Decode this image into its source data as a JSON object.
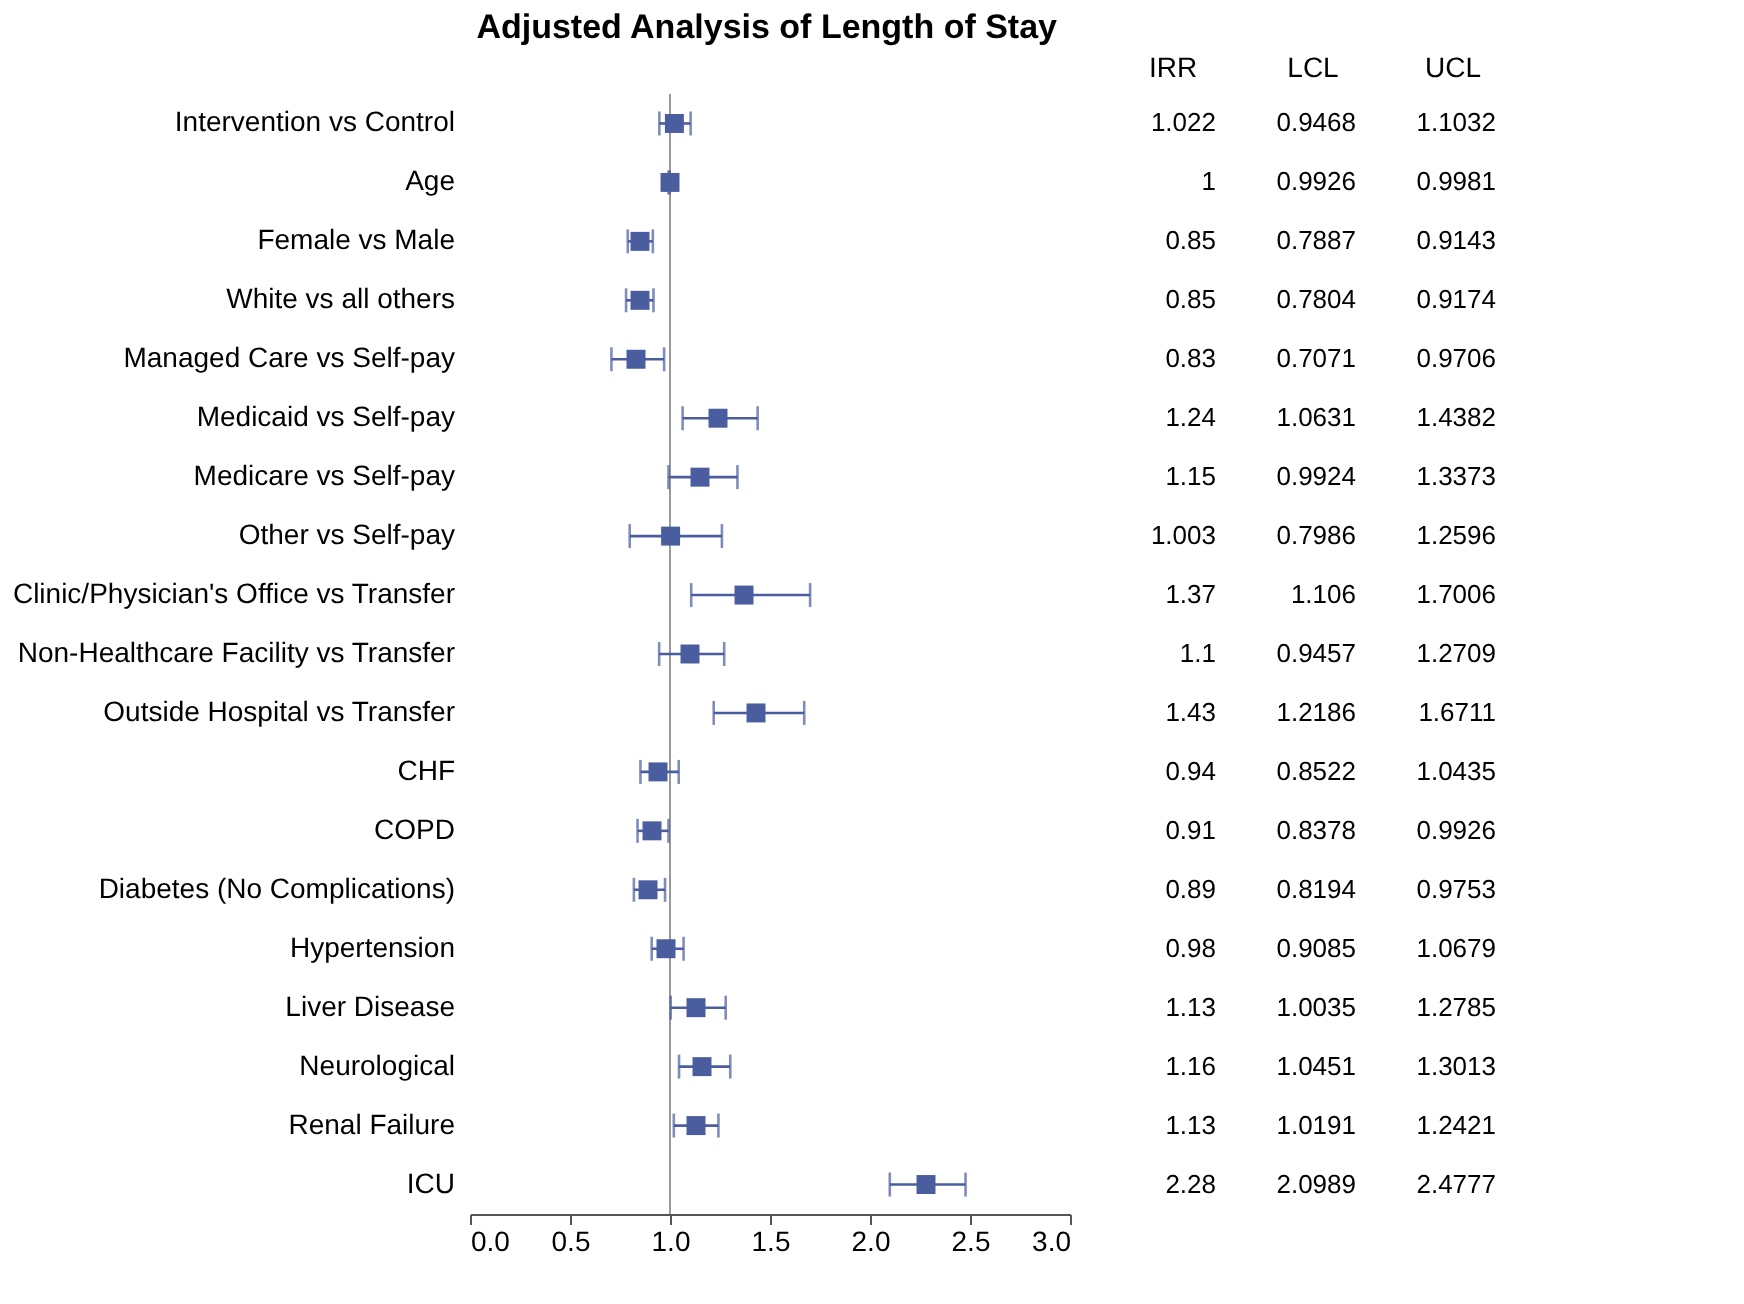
{
  "chart_data": {
    "type": "scatter",
    "orientation": "horizontal",
    "title": "Adjusted Analysis of Length of Stay",
    "categories": [
      "Intervention vs Control",
      "Age",
      "Female vs Male",
      "White vs all others",
      "Managed Care vs Self-pay",
      "Medicaid vs Self-pay",
      "Medicare vs Self-pay",
      "Other vs Self-pay",
      "Clinic/Physician's Office vs Transfer",
      "Non-Healthcare Facility vs Transfer",
      "Outside Hospital vs Transfer",
      "CHF",
      "COPD",
      "Diabetes (No Complications)",
      "Hypertension",
      "Liver Disease",
      "Neurological",
      "Renal Failure",
      "ICU"
    ],
    "values": [
      1.022,
      1,
      0.85,
      0.85,
      0.83,
      1.24,
      1.15,
      1.003,
      1.37,
      1.1,
      1.43,
      0.94,
      0.91,
      0.89,
      0.98,
      1.13,
      1.16,
      1.13,
      2.28
    ],
    "errors": [
      [
        0.9468,
        1.1032
      ],
      [
        0.9926,
        0.9981
      ],
      [
        0.7887,
        0.9143
      ],
      [
        0.7804,
        0.9174
      ],
      [
        0.7071,
        0.9706
      ],
      [
        1.0631,
        1.4382
      ],
      [
        0.9924,
        1.3373
      ],
      [
        0.7986,
        1.2596
      ],
      [
        1.106,
        1.7006
      ],
      [
        0.9457,
        1.2709
      ],
      [
        1.2186,
        1.6711
      ],
      [
        0.8522,
        1.0435
      ],
      [
        0.8378,
        0.9926
      ],
      [
        0.8194,
        0.9753
      ],
      [
        0.9085,
        1.0679
      ],
      [
        1.0035,
        1.2785
      ],
      [
        1.0451,
        1.3013
      ],
      [
        1.0191,
        1.2421
      ],
      [
        2.0989,
        2.4777
      ]
    ],
    "color": "#4a5d9e",
    "marker": "square",
    "data_labels": true,
    "annotations": [
      "IRR",
      "LCL",
      "UCL",
      "0.9468",
      "1.1032",
      "0.9926",
      "0.9981",
      "0.7887",
      "0.9143",
      "0.7804",
      "0.9174",
      "0.7071",
      "0.9706",
      "1.0631",
      "1.4382",
      "0.9924",
      "1.3373",
      "0.7986",
      "1.2596",
      "1.106",
      "1.7006",
      "0.9457",
      "1.2709",
      "1.2186",
      "1.6711",
      "0.8522",
      "1.0435",
      "0.8378",
      "0.9926",
      "0.8194",
      "0.9753",
      "0.9085",
      "1.0679",
      "1.0035",
      "1.2785",
      "1.0451",
      "1.3013",
      "1.0191",
      "1.2421",
      "2.0989",
      "2.4777"
    ],
    "xlim": [
      0,
      3
    ],
    "xticks": [
      {
        "value": 0,
        "label": "0.0"
      },
      {
        "value": 0.5,
        "label": "0.5"
      },
      {
        "value": 1,
        "label": "1.0"
      },
      {
        "value": 1.5,
        "label": "1.5"
      },
      {
        "value": 2,
        "label": "2.0"
      },
      {
        "value": 2.5,
        "label": "2.5"
      },
      {
        "value": 3,
        "label": "3.0"
      }
    ],
    "ref_lines": [
      {
        "axis": "x",
        "value": 1,
        "color": "#999999"
      }
    ],
    "grid": false
  }
}
